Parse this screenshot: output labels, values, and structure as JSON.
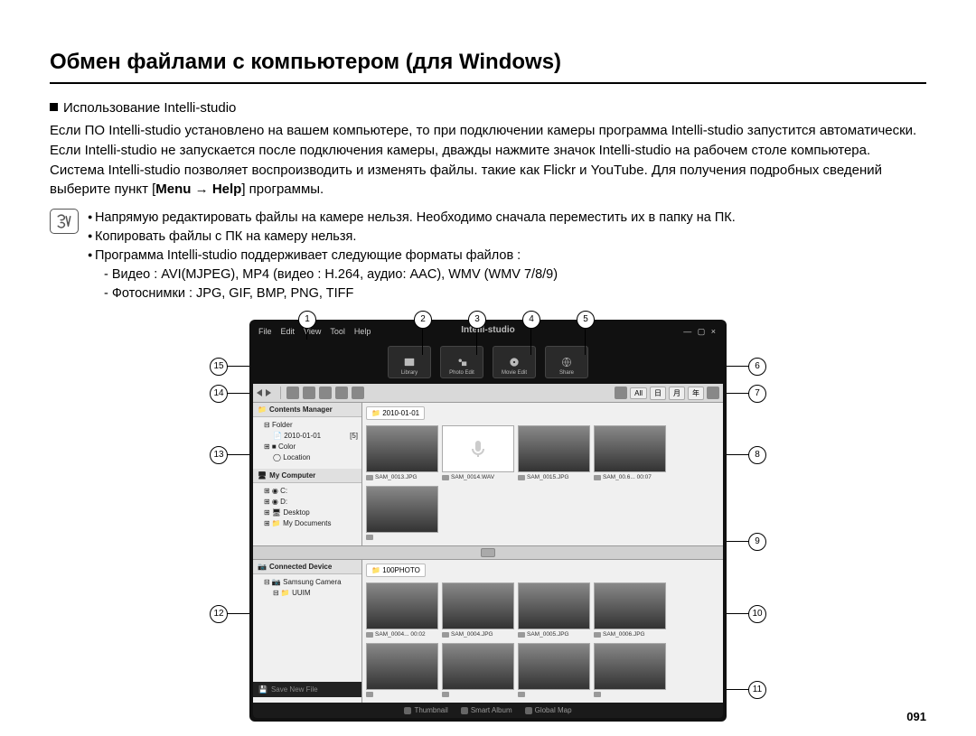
{
  "title": "Обмен файлами с компьютером (для Windows)",
  "subhead": "Использование Intelli-studio",
  "body_html": "Если ПО Intelli-studio установлено на вашем компьютере, то при подключении камеры программа Intelli-studio запустится автоматически. Если Intelli-studio не запускается после подключения камеры, дважды нажмите значок Intelli-studio на рабочем столе компьютера. Система Intelli-studio позволяет воспроизводить и изменять файлы. такие как Flickr и YouTube. Для получения подробных сведений выберите пункт [<b>Menu</b> → <b>Help</b>] программы.",
  "notes": {
    "n1": "Напрямую редактировать файлы на камере нельзя. Необходимо сначала переместить их в папку на ПК.",
    "n2": "Копировать файлы с ПК на камеру нельзя.",
    "n3": "Программа Intelli-studio поддерживает следующие форматы файлов :",
    "n3a": "- Видео : AVI(MJPEG), MP4 (видео : H.264, аудио: AAC), WMV (WMV 7/8/9)",
    "n3b": "- Фотоснимки : JPG, GIF, BMP, PNG, TIFF"
  },
  "menu": {
    "file": "File",
    "edit": "Edit",
    "view": "View",
    "tool": "Tool",
    "help": "Help",
    "win": "— ▢ ×"
  },
  "logo": "Intelli-studio",
  "bigtabs": {
    "a": "Library",
    "b": "Photo Edit",
    "c": "Movie Edit",
    "d": "Share"
  },
  "toolbar_right": {
    "all": "All",
    "d": "日",
    "m": "月",
    "y": "年"
  },
  "side": {
    "h1": "Contents Manager",
    "folder": "Folder",
    "date": "2010-01-01",
    "datecount": "[5]",
    "color": "Color",
    "loc": "Location",
    "h2": "My Computer",
    "c": "C:",
    "d": "D:",
    "desk": "Desktop",
    "docs": "My Documents",
    "h3": "Connected Device",
    "cam": "Samsung Camera",
    "uuim": "UUIM",
    "save": "Save New File"
  },
  "crumb1": "2010-01-01",
  "crumb2": "100PHOTO",
  "thumbs1": [
    {
      "cap": "SAM_0013.JPG"
    },
    {
      "cap": "SAM_0014.WAV",
      "voice": true
    },
    {
      "cap": "SAM_0015.JPG"
    },
    {
      "cap": "SAM_00.6... 00:07"
    },
    {
      "cap": ""
    }
  ],
  "thumbs2": [
    {
      "cap": "SAM_0004... 00:02"
    },
    {
      "cap": "SAM_0004.JPG"
    },
    {
      "cap": "SAM_0005.JPG"
    },
    {
      "cap": "SAM_0006.JPG"
    },
    {
      "cap": ""
    },
    {
      "cap": ""
    },
    {
      "cap": ""
    },
    {
      "cap": ""
    }
  ],
  "footer": {
    "a": "Thumbnail",
    "b": "Smart Album",
    "c": "Global Map"
  },
  "page_num": "091",
  "callouts": [
    "1",
    "2",
    "3",
    "4",
    "5",
    "6",
    "7",
    "8",
    "9",
    "10",
    "11",
    "12",
    "13",
    "14",
    "15"
  ]
}
